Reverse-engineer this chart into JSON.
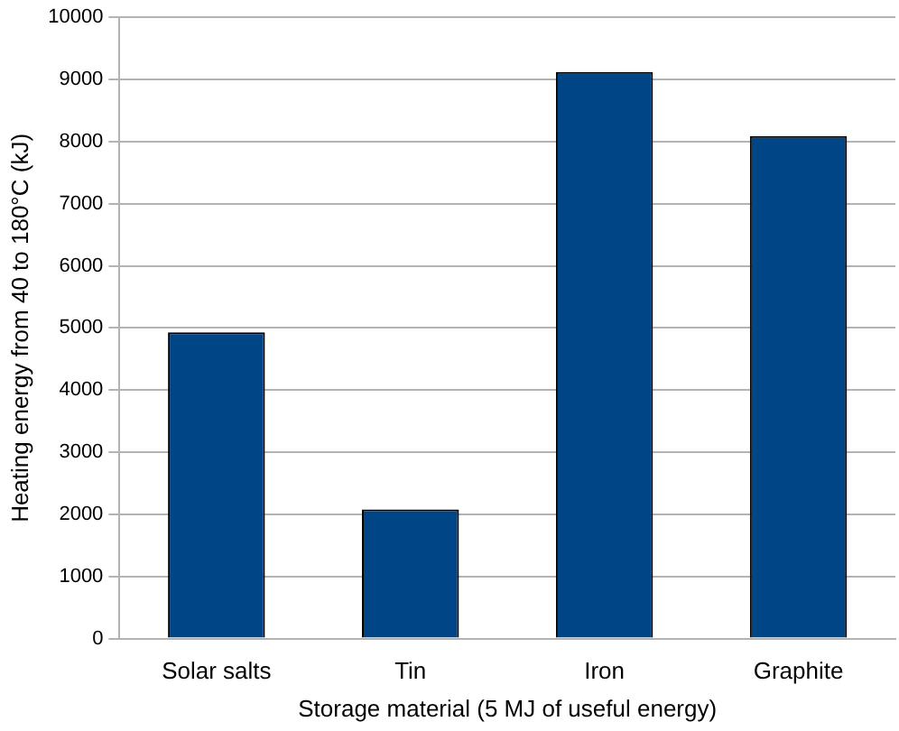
{
  "chart_data": {
    "type": "bar",
    "xlabel": "Storage material (5 MJ of useful energy)",
    "ylabel": "Heating energy from 40 to 180°C (kJ)",
    "categories": [
      "Solar salts",
      "Tin",
      "Iron",
      "Graphite"
    ],
    "values": [
      4930,
      2080,
      9120,
      8090
    ],
    "color": "#004586",
    "ylim": [
      0,
      10000
    ],
    "yticks": [
      0,
      1000,
      2000,
      3000,
      4000,
      5000,
      6000,
      7000,
      8000,
      9000,
      10000
    ],
    "grid": "y",
    "legend": false
  }
}
